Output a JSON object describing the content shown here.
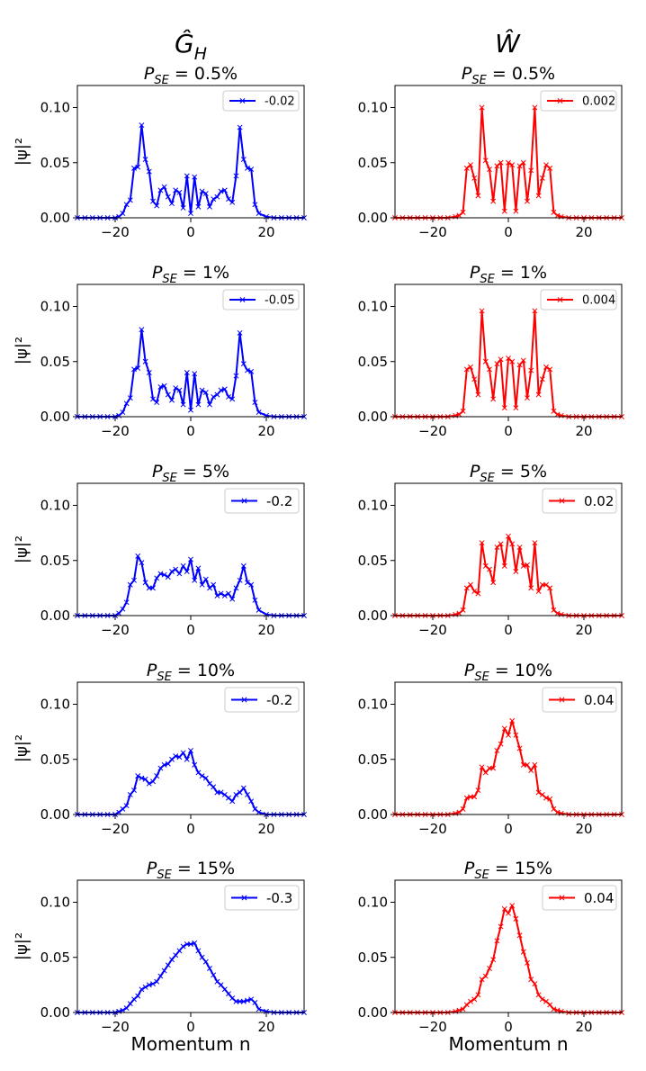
{
  "column_titles": [
    "Ĝ_H",
    "Ŵ"
  ],
  "chart_data": [
    {
      "type": "line",
      "row": 0,
      "col": 0,
      "title": "P_SE = 0.5%",
      "legend": "-0.02",
      "color": "#0000ff",
      "ylabel": "|ψ|²",
      "xlabel": "",
      "xlim": [
        -30,
        30
      ],
      "ylim": [
        0,
        0.12
      ],
      "xticks": [
        -20,
        0,
        20
      ],
      "yticks": [
        0.0,
        0.05,
        0.1
      ],
      "x": [
        -30,
        -28,
        -26,
        -24,
        -22,
        -20,
        -19,
        -18,
        -17,
        -16,
        -15,
        -14,
        -13,
        -12,
        -11,
        -10,
        -9,
        -8,
        -7,
        -6,
        -5,
        -4,
        -3,
        -2,
        -1,
        0,
        1,
        2,
        3,
        4,
        5,
        6,
        7,
        8,
        9,
        10,
        11,
        12,
        13,
        14,
        15,
        16,
        17,
        18,
        20,
        22,
        24,
        26,
        28,
        30
      ],
      "y": [
        0,
        0,
        0,
        0,
        0,
        0,
        0.001,
        0.004,
        0.012,
        0.016,
        0.045,
        0.046,
        0.084,
        0.053,
        0.042,
        0.015,
        0.011,
        0.025,
        0.028,
        0.019,
        0.013,
        0.025,
        0.023,
        0.009,
        0.038,
        0.004,
        0.037,
        0.01,
        0.024,
        0.022,
        0.01,
        0.017,
        0.019,
        0.024,
        0.025,
        0.017,
        0.014,
        0.038,
        0.082,
        0.053,
        0.045,
        0.044,
        0.012,
        0.004,
        0.001,
        0,
        0,
        0,
        0,
        0
      ]
    },
    {
      "type": "line",
      "row": 0,
      "col": 1,
      "title": "P_SE = 0.5%",
      "legend": "0.002",
      "color": "#ff0000",
      "ylabel": "",
      "xlabel": "",
      "xlim": [
        -30,
        30
      ],
      "ylim": [
        0,
        0.12
      ],
      "xticks": [
        -20,
        0,
        20
      ],
      "yticks": [
        0.0,
        0.05,
        0.1
      ],
      "x": [
        -30,
        -28,
        -26,
        -24,
        -22,
        -20,
        -18,
        -16,
        -14,
        -13,
        -12,
        -11,
        -10,
        -9,
        -8,
        -7,
        -6,
        -5,
        -4,
        -3,
        -2,
        -1,
        0,
        1,
        2,
        3,
        4,
        5,
        6,
        7,
        8,
        9,
        10,
        11,
        12,
        13,
        14,
        16,
        18,
        20,
        22,
        24,
        26,
        28,
        30
      ],
      "y": [
        0,
        0,
        0,
        0,
        0,
        0,
        0,
        0,
        0.001,
        0.002,
        0.005,
        0.045,
        0.048,
        0.036,
        0.02,
        0.1,
        0.052,
        0.044,
        0.015,
        0.047,
        0.05,
        0.006,
        0.05,
        0.048,
        0.006,
        0.047,
        0.05,
        0.015,
        0.043,
        0.1,
        0.02,
        0.036,
        0.048,
        0.045,
        0.005,
        0.002,
        0.001,
        0,
        0,
        0,
        0,
        0,
        0,
        0,
        0
      ]
    },
    {
      "type": "line",
      "row": 1,
      "col": 0,
      "title": "P_SE = 1%",
      "legend": "-0.05",
      "color": "#0000ff",
      "ylabel": "|ψ|²",
      "xlabel": "",
      "xlim": [
        -30,
        30
      ],
      "ylim": [
        0,
        0.12
      ],
      "xticks": [
        -20,
        0,
        20
      ],
      "yticks": [
        0.0,
        0.05,
        0.1
      ],
      "x": [
        -30,
        -28,
        -26,
        -24,
        -22,
        -20,
        -19,
        -18,
        -17,
        -16,
        -15,
        -14,
        -13,
        -12,
        -11,
        -10,
        -9,
        -8,
        -7,
        -6,
        -5,
        -4,
        -3,
        -2,
        -1,
        0,
        1,
        2,
        3,
        4,
        5,
        6,
        7,
        8,
        9,
        10,
        11,
        12,
        13,
        14,
        15,
        16,
        17,
        18,
        20,
        22,
        24,
        26,
        28,
        30
      ],
      "y": [
        0,
        0,
        0,
        0,
        0,
        0,
        0.001,
        0.004,
        0.012,
        0.017,
        0.043,
        0.044,
        0.079,
        0.05,
        0.04,
        0.016,
        0.013,
        0.027,
        0.028,
        0.02,
        0.015,
        0.026,
        0.024,
        0.011,
        0.04,
        0.006,
        0.039,
        0.011,
        0.024,
        0.022,
        0.011,
        0.018,
        0.02,
        0.024,
        0.025,
        0.018,
        0.016,
        0.037,
        0.076,
        0.048,
        0.042,
        0.041,
        0.013,
        0.004,
        0.001,
        0,
        0,
        0,
        0,
        0
      ]
    },
    {
      "type": "line",
      "row": 1,
      "col": 1,
      "title": "P_SE = 1%",
      "legend": "0.004",
      "color": "#ff0000",
      "ylabel": "",
      "xlabel": "",
      "xlim": [
        -30,
        30
      ],
      "ylim": [
        0,
        0.12
      ],
      "xticks": [
        -20,
        0,
        20
      ],
      "yticks": [
        0.0,
        0.05,
        0.1
      ],
      "x": [
        -30,
        -28,
        -26,
        -24,
        -22,
        -20,
        -18,
        -16,
        -14,
        -13,
        -12,
        -11,
        -10,
        -9,
        -8,
        -7,
        -6,
        -5,
        -4,
        -3,
        -2,
        -1,
        0,
        1,
        2,
        3,
        4,
        5,
        6,
        7,
        8,
        9,
        10,
        11,
        12,
        13,
        14,
        16,
        18,
        20,
        22,
        24,
        26,
        28,
        30
      ],
      "y": [
        0,
        0,
        0,
        0,
        0,
        0,
        0,
        0,
        0.001,
        0.002,
        0.005,
        0.043,
        0.045,
        0.034,
        0.02,
        0.096,
        0.05,
        0.043,
        0.016,
        0.048,
        0.052,
        0.008,
        0.053,
        0.05,
        0.008,
        0.047,
        0.051,
        0.017,
        0.042,
        0.096,
        0.02,
        0.034,
        0.045,
        0.043,
        0.005,
        0.002,
        0.001,
        0,
        0,
        0,
        0,
        0,
        0,
        0,
        0
      ]
    },
    {
      "type": "line",
      "row": 2,
      "col": 0,
      "title": "P_SE = 5%",
      "legend": "-0.2",
      "color": "#0000ff",
      "ylabel": "|ψ|²",
      "xlabel": "",
      "xlim": [
        -30,
        30
      ],
      "ylim": [
        0,
        0.12
      ],
      "xticks": [
        -20,
        0,
        20
      ],
      "yticks": [
        0.0,
        0.05,
        0.1
      ],
      "x": [
        -30,
        -28,
        -26,
        -24,
        -22,
        -20,
        -19,
        -18,
        -17,
        -16,
        -15,
        -14,
        -13,
        -12,
        -11,
        -10,
        -9,
        -8,
        -7,
        -6,
        -5,
        -4,
        -3,
        -2,
        -1,
        0,
        1,
        2,
        3,
        4,
        5,
        6,
        7,
        8,
        9,
        10,
        11,
        12,
        13,
        14,
        15,
        16,
        17,
        18,
        20,
        22,
        24,
        26,
        28,
        30
      ],
      "y": [
        0,
        0,
        0,
        0,
        0,
        0,
        0.002,
        0.006,
        0.012,
        0.028,
        0.032,
        0.054,
        0.048,
        0.03,
        0.025,
        0.025,
        0.034,
        0.038,
        0.037,
        0.035,
        0.04,
        0.042,
        0.038,
        0.045,
        0.04,
        0.051,
        0.032,
        0.043,
        0.028,
        0.033,
        0.025,
        0.028,
        0.018,
        0.02,
        0.018,
        0.02,
        0.015,
        0.025,
        0.032,
        0.045,
        0.03,
        0.028,
        0.014,
        0.005,
        0.001,
        0,
        0,
        0,
        0,
        0
      ]
    },
    {
      "type": "line",
      "row": 2,
      "col": 1,
      "title": "P_SE = 5%",
      "legend": "0.02",
      "color": "#ff0000",
      "ylabel": "",
      "xlabel": "",
      "xlim": [
        -30,
        30
      ],
      "ylim": [
        0,
        0.12
      ],
      "xticks": [
        -20,
        0,
        20
      ],
      "yticks": [
        0.0,
        0.05,
        0.1
      ],
      "x": [
        -30,
        -28,
        -26,
        -24,
        -22,
        -20,
        -18,
        -16,
        -14,
        -13,
        -12,
        -11,
        -10,
        -9,
        -8,
        -7,
        -6,
        -5,
        -4,
        -3,
        -2,
        -1,
        0,
        1,
        2,
        3,
        4,
        5,
        6,
        7,
        8,
        9,
        10,
        11,
        12,
        13,
        14,
        16,
        18,
        20,
        22,
        24,
        26,
        28,
        30
      ],
      "y": [
        0,
        0,
        0,
        0,
        0,
        0,
        0,
        0,
        0.001,
        0.002,
        0.005,
        0.025,
        0.028,
        0.022,
        0.02,
        0.066,
        0.045,
        0.042,
        0.03,
        0.062,
        0.065,
        0.045,
        0.072,
        0.065,
        0.04,
        0.062,
        0.045,
        0.046,
        0.025,
        0.066,
        0.022,
        0.028,
        0.028,
        0.025,
        0.005,
        0.002,
        0.001,
        0,
        0,
        0,
        0,
        0,
        0,
        0,
        0
      ]
    },
    {
      "type": "line",
      "row": 3,
      "col": 0,
      "title": "P_SE = 10%",
      "legend": "-0.2",
      "color": "#0000ff",
      "ylabel": "|ψ|²",
      "xlabel": "",
      "xlim": [
        -30,
        30
      ],
      "ylim": [
        0,
        0.12
      ],
      "xticks": [
        -20,
        0,
        20
      ],
      "yticks": [
        0.0,
        0.05,
        0.1
      ],
      "x": [
        -30,
        -28,
        -26,
        -24,
        -22,
        -20,
        -19,
        -18,
        -17,
        -16,
        -15,
        -14,
        -13,
        -12,
        -11,
        -10,
        -9,
        -8,
        -7,
        -6,
        -5,
        -4,
        -3,
        -2,
        -1,
        0,
        1,
        2,
        3,
        4,
        5,
        6,
        7,
        8,
        9,
        10,
        11,
        12,
        13,
        14,
        15,
        16,
        17,
        18,
        20,
        22,
        24,
        26,
        28,
        30
      ],
      "y": [
        0,
        0,
        0,
        0,
        0,
        0,
        0.002,
        0.005,
        0.008,
        0.018,
        0.022,
        0.035,
        0.033,
        0.032,
        0.028,
        0.03,
        0.035,
        0.042,
        0.045,
        0.046,
        0.05,
        0.053,
        0.052,
        0.056,
        0.05,
        0.058,
        0.045,
        0.038,
        0.035,
        0.033,
        0.028,
        0.025,
        0.02,
        0.02,
        0.018,
        0.015,
        0.012,
        0.018,
        0.02,
        0.024,
        0.018,
        0.012,
        0.005,
        0.002,
        0,
        0,
        0,
        0,
        0,
        0
      ]
    },
    {
      "type": "line",
      "row": 3,
      "col": 1,
      "title": "P_SE = 10%",
      "legend": "0.04",
      "color": "#ff0000",
      "ylabel": "",
      "xlabel": "",
      "xlim": [
        -30,
        30
      ],
      "ylim": [
        0,
        0.12
      ],
      "xticks": [
        -20,
        0,
        20
      ],
      "yticks": [
        0.0,
        0.05,
        0.1
      ],
      "x": [
        -30,
        -28,
        -26,
        -24,
        -22,
        -20,
        -18,
        -16,
        -14,
        -13,
        -12,
        -11,
        -10,
        -9,
        -8,
        -7,
        -6,
        -5,
        -4,
        -3,
        -2,
        -1,
        0,
        1,
        2,
        3,
        4,
        5,
        6,
        7,
        8,
        9,
        10,
        11,
        12,
        13,
        14,
        16,
        18,
        20,
        22,
        24,
        26,
        28,
        30
      ],
      "y": [
        0,
        0,
        0,
        0,
        0,
        0,
        0,
        0,
        0.001,
        0.002,
        0.005,
        0.015,
        0.016,
        0.016,
        0.022,
        0.043,
        0.038,
        0.042,
        0.042,
        0.058,
        0.064,
        0.078,
        0.072,
        0.085,
        0.072,
        0.06,
        0.045,
        0.045,
        0.04,
        0.045,
        0.02,
        0.018,
        0.015,
        0.014,
        0.005,
        0.002,
        0.001,
        0,
        0,
        0,
        0,
        0,
        0,
        0,
        0
      ]
    },
    {
      "type": "line",
      "row": 4,
      "col": 0,
      "title": "P_SE = 15%",
      "legend": "-0.3",
      "color": "#0000ff",
      "ylabel": "|ψ|²",
      "xlabel": "Momentum n",
      "xlim": [
        -30,
        30
      ],
      "ylim": [
        0,
        0.12
      ],
      "xticks": [
        -20,
        0,
        20
      ],
      "yticks": [
        0.0,
        0.05,
        0.1
      ],
      "x": [
        -30,
        -28,
        -26,
        -24,
        -22,
        -20,
        -19,
        -18,
        -17,
        -16,
        -15,
        -14,
        -13,
        -12,
        -11,
        -10,
        -9,
        -8,
        -7,
        -6,
        -5,
        -4,
        -3,
        -2,
        -1,
        0,
        1,
        2,
        3,
        4,
        5,
        6,
        7,
        8,
        9,
        10,
        11,
        12,
        13,
        14,
        15,
        16,
        17,
        18,
        20,
        22,
        24,
        26,
        28,
        30
      ],
      "y": [
        0,
        0,
        0,
        0,
        0,
        0,
        0.001,
        0.002,
        0.004,
        0.008,
        0.012,
        0.015,
        0.021,
        0.023,
        0.025,
        0.026,
        0.028,
        0.033,
        0.038,
        0.043,
        0.048,
        0.052,
        0.056,
        0.06,
        0.062,
        0.062,
        0.063,
        0.056,
        0.05,
        0.046,
        0.04,
        0.034,
        0.028,
        0.025,
        0.021,
        0.017,
        0.013,
        0.01,
        0.01,
        0.01,
        0.011,
        0.012,
        0.009,
        0.003,
        0.001,
        0,
        0,
        0,
        0,
        0
      ]
    },
    {
      "type": "line",
      "row": 4,
      "col": 1,
      "title": "P_SE = 15%",
      "legend": "0.04",
      "color": "#ff0000",
      "ylabel": "",
      "xlabel": "Momentum n",
      "xlim": [
        -30,
        30
      ],
      "ylim": [
        0,
        0.12
      ],
      "xticks": [
        -20,
        0,
        20
      ],
      "yticks": [
        0.0,
        0.05,
        0.1
      ],
      "x": [
        -30,
        -28,
        -26,
        -24,
        -22,
        -20,
        -18,
        -16,
        -14,
        -13,
        -12,
        -11,
        -10,
        -9,
        -8,
        -7,
        -6,
        -5,
        -4,
        -3,
        -2,
        -1,
        0,
        1,
        2,
        3,
        4,
        5,
        6,
        7,
        8,
        9,
        10,
        11,
        12,
        13,
        14,
        16,
        18,
        20,
        22,
        24,
        26,
        28,
        30
      ],
      "y": [
        0,
        0,
        0,
        0,
        0,
        0,
        0,
        0,
        0.001,
        0.002,
        0.003,
        0.007,
        0.01,
        0.012,
        0.016,
        0.03,
        0.033,
        0.04,
        0.048,
        0.065,
        0.078,
        0.094,
        0.09,
        0.097,
        0.085,
        0.07,
        0.055,
        0.045,
        0.03,
        0.026,
        0.016,
        0.012,
        0.01,
        0.007,
        0.003,
        0.002,
        0.001,
        0,
        0,
        0,
        0,
        0,
        0,
        0,
        0
      ]
    }
  ]
}
